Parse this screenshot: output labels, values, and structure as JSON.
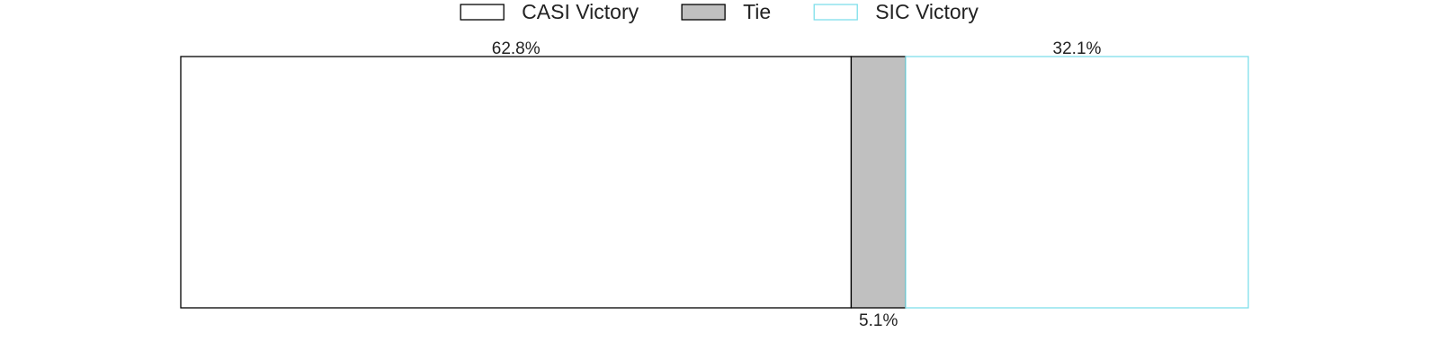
{
  "chart_data": {
    "type": "bar",
    "orientation": "horizontal-stacked",
    "legend": "top-center",
    "xlim": [
      0,
      100
    ],
    "series": [
      {
        "name": "CASI Victory",
        "value": 62.8,
        "label": "62.8%",
        "fill": "#ffffff",
        "stroke": "#000000"
      },
      {
        "name": "Tie",
        "value": 5.1,
        "label": "5.1%",
        "fill": "#c0c0c0",
        "stroke": "#000000"
      },
      {
        "name": "SIC Victory",
        "value": 32.1,
        "label": "32.1%",
        "fill": "#ffffff",
        "stroke": "#7fdfea"
      }
    ]
  }
}
